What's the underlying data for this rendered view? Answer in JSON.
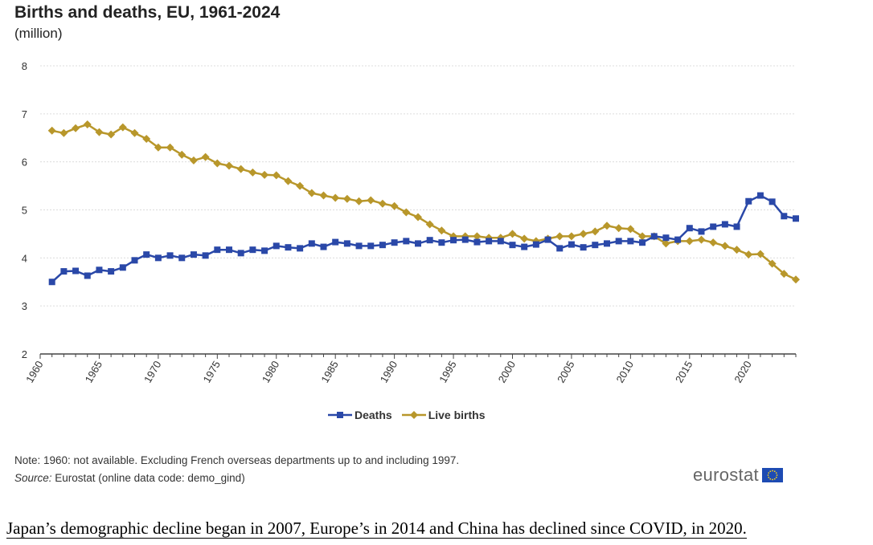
{
  "chart_data": {
    "type": "line",
    "title": "Births and deaths, EU, 1961-2024",
    "subtitle": "(million)",
    "xlabel": "",
    "ylabel": "",
    "ylim": [
      2,
      8
    ],
    "yticks": [
      "2",
      "3",
      "4",
      "5",
      "6",
      "7",
      "8"
    ],
    "xlim": [
      1960,
      2024
    ],
    "xticks": [
      "1960",
      "1965",
      "1970",
      "1975",
      "1980",
      "1985",
      "1990",
      "1995",
      "2000",
      "2005",
      "2010",
      "2015",
      "2020"
    ],
    "x": [
      1961,
      1962,
      1963,
      1964,
      1965,
      1966,
      1967,
      1968,
      1969,
      1970,
      1971,
      1972,
      1973,
      1974,
      1975,
      1976,
      1977,
      1978,
      1979,
      1980,
      1981,
      1982,
      1983,
      1984,
      1985,
      1986,
      1987,
      1988,
      1989,
      1990,
      1991,
      1992,
      1993,
      1994,
      1995,
      1996,
      1997,
      1998,
      1999,
      2000,
      2001,
      2002,
      2003,
      2004,
      2005,
      2006,
      2007,
      2008,
      2009,
      2010,
      2011,
      2012,
      2013,
      2014,
      2015,
      2016,
      2017,
      2018,
      2019,
      2020,
      2021,
      2022,
      2023,
      2024
    ],
    "series": [
      {
        "name": "Deaths",
        "color": "#2a48a8",
        "marker": "square",
        "values": [
          3.5,
          3.72,
          3.73,
          3.63,
          3.75,
          3.72,
          3.8,
          3.95,
          4.07,
          4.0,
          4.05,
          4.0,
          4.07,
          4.05,
          4.17,
          4.17,
          4.1,
          4.17,
          4.15,
          4.25,
          4.22,
          4.2,
          4.3,
          4.23,
          4.33,
          4.3,
          4.25,
          4.25,
          4.27,
          4.32,
          4.35,
          4.3,
          4.37,
          4.32,
          4.37,
          4.38,
          4.33,
          4.35,
          4.35,
          4.27,
          4.23,
          4.28,
          4.38,
          4.2,
          4.28,
          4.22,
          4.27,
          4.3,
          4.35,
          4.35,
          4.32,
          4.45,
          4.42,
          4.38,
          4.62,
          4.55,
          4.65,
          4.7,
          4.65,
          5.18,
          5.3,
          5.17,
          4.87,
          4.82
        ]
      },
      {
        "name": "Live births",
        "color": "#b8972b",
        "marker": "diamond",
        "values": [
          6.65,
          6.6,
          6.7,
          6.78,
          6.62,
          6.57,
          6.72,
          6.6,
          6.48,
          6.3,
          6.3,
          6.15,
          6.03,
          6.1,
          5.97,
          5.92,
          5.85,
          5.78,
          5.73,
          5.72,
          5.6,
          5.5,
          5.35,
          5.3,
          5.25,
          5.23,
          5.18,
          5.2,
          5.13,
          5.08,
          4.95,
          4.85,
          4.7,
          4.57,
          4.45,
          4.45,
          4.45,
          4.42,
          4.42,
          4.5,
          4.4,
          4.35,
          4.4,
          4.45,
          4.45,
          4.5,
          4.55,
          4.67,
          4.62,
          4.6,
          4.45,
          4.45,
          4.3,
          4.35,
          4.35,
          4.38,
          4.32,
          4.25,
          4.17,
          4.07,
          4.08,
          3.88,
          3.67,
          3.55
        ]
      }
    ],
    "legend_position": "bottom-center"
  },
  "note": "Note: 1960: not available. Excluding French overseas departments up to and including 1997.",
  "source_label": "Source:",
  "source_text": " Eurostat (online data code: demo_gind)",
  "logo_text": "eurostat",
  "caption": "Japan’s demographic decline began in 2007, Europe’s in 2014 and China has declined since COVID, in 2020."
}
